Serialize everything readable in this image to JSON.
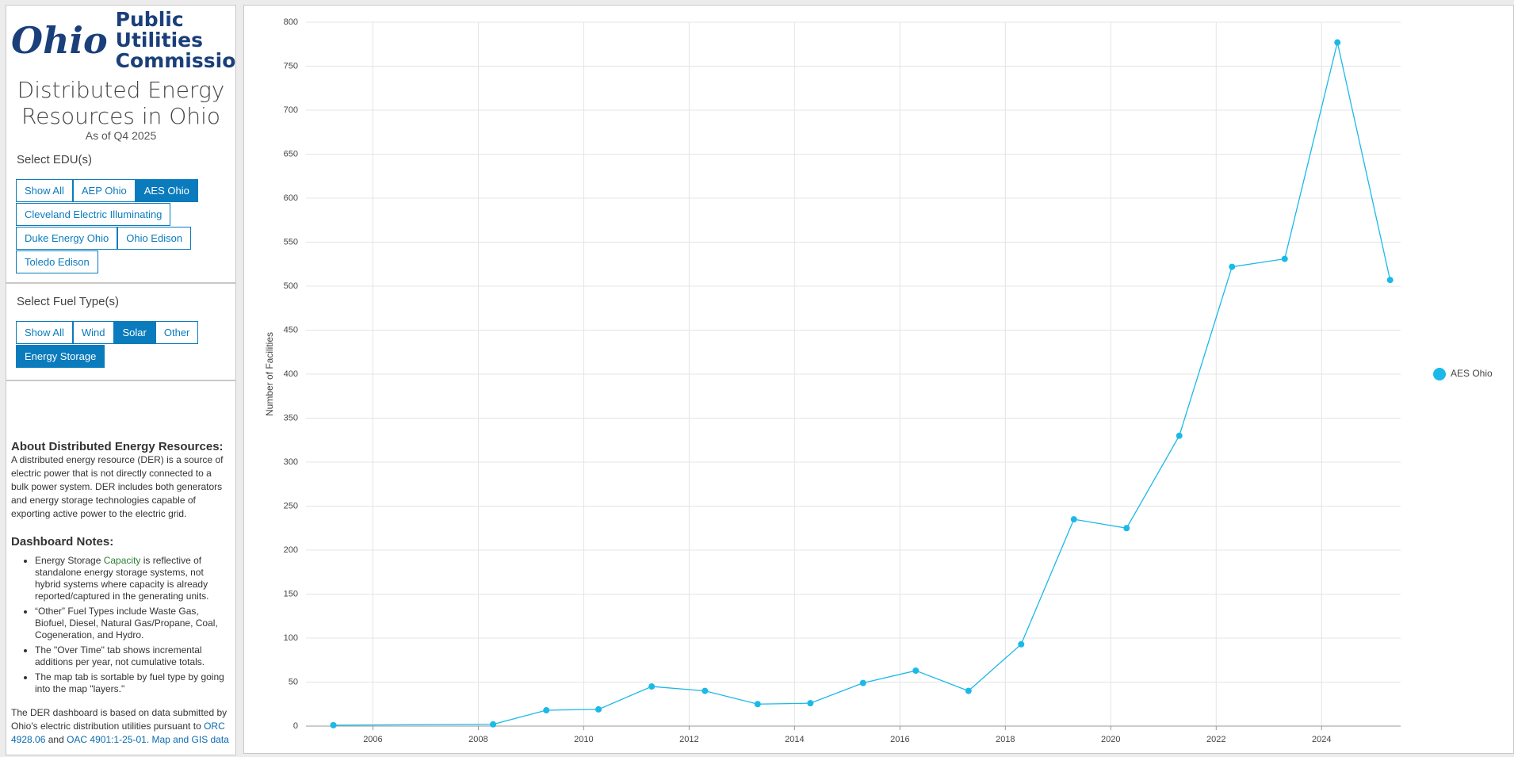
{
  "logo": {
    "mark": "Ohio",
    "org": "Public Utilities Commission"
  },
  "header": {
    "title": "Distributed Energy Resources in Ohio",
    "subtitle": "As of Q4 2025"
  },
  "edu_filter": {
    "label": "Select EDU(s)",
    "buttons": [
      {
        "label": "Show All",
        "selected": false
      },
      {
        "label": "AEP Ohio",
        "selected": false
      },
      {
        "label": "AES Ohio",
        "selected": true
      },
      {
        "label": "Cleveland Electric Illuminating",
        "selected": false
      },
      {
        "label": "Duke Energy Ohio",
        "selected": false
      },
      {
        "label": "Ohio Edison",
        "selected": false
      },
      {
        "label": "Toledo Edison",
        "selected": false
      }
    ]
  },
  "fuel_filter": {
    "label": "Select Fuel Type(s)",
    "buttons": [
      {
        "label": "Show All",
        "selected": false
      },
      {
        "label": "Wind",
        "selected": false
      },
      {
        "label": "Solar",
        "selected": true
      },
      {
        "label": "Other",
        "selected": false
      },
      {
        "label": "Energy Storage",
        "selected": true
      }
    ]
  },
  "about": {
    "heading": "About Distributed Energy Resources:",
    "text": "A distributed energy resource (DER) is a source of electric power that is not directly connected to a bulk power system. DER includes both generators and energy storage technologies capable of exporting active power to the electric grid."
  },
  "notes": {
    "heading": "Dashboard Notes:",
    "items": [
      {
        "before": "Energy Storage ",
        "highlight": "Capacity",
        "after": " is reflective of standalone energy storage systems, not hybrid systems where capacity is already reported/captured in the generating units."
      },
      {
        "before": "“Other” Fuel Types include Waste Gas, Biofuel, Diesel, Natural Gas/Propane, Coal, Cogeneration, and Hydro."
      },
      {
        "before": "The \"Over Time\" tab shows incremental additions per year, not cumulative totals."
      },
      {
        "before": "The map tab is sortable by fuel type by going into the map \"layers.\""
      }
    ]
  },
  "footer": {
    "text1": "The DER dashboard is based on data submitted by Ohio's electric distribution utilities pursuant to ",
    "link1": "ORC 4928.06",
    "text2": " and ",
    "link2": "OAC 4901:1-25-01. Map and GIS data"
  },
  "chart_data": {
    "type": "line",
    "y_label": "Number of Facilities",
    "series": [
      {
        "name": "AES Ohio",
        "color": "#1bb9e8",
        "x": [
          2005.25,
          2008.28,
          2009.29,
          2010.28,
          2011.29,
          2012.3,
          2013.3,
          2014.3,
          2015.3,
          2016.3,
          2017.3,
          2018.3,
          2019.3,
          2020.3,
          2021.3,
          2022.3,
          2023.3,
          2024.3,
          2025.3
        ],
        "values": [
          1,
          2,
          18,
          19,
          45,
          40,
          25,
          26,
          49,
          63,
          40,
          93,
          235,
          225,
          330,
          522,
          531,
          777,
          507
        ]
      }
    ],
    "xlim": [
      2004.73,
      2025.5
    ],
    "xticks": [
      2006,
      2008,
      2010,
      2012,
      2014,
      2016,
      2018,
      2020,
      2022,
      2024
    ],
    "ylim": [
      0,
      800
    ],
    "yticks": [
      0,
      50,
      100,
      150,
      200,
      250,
      300,
      350,
      400,
      450,
      500,
      550,
      600,
      650,
      700,
      750,
      800
    ],
    "grid": true,
    "legend": "right"
  }
}
